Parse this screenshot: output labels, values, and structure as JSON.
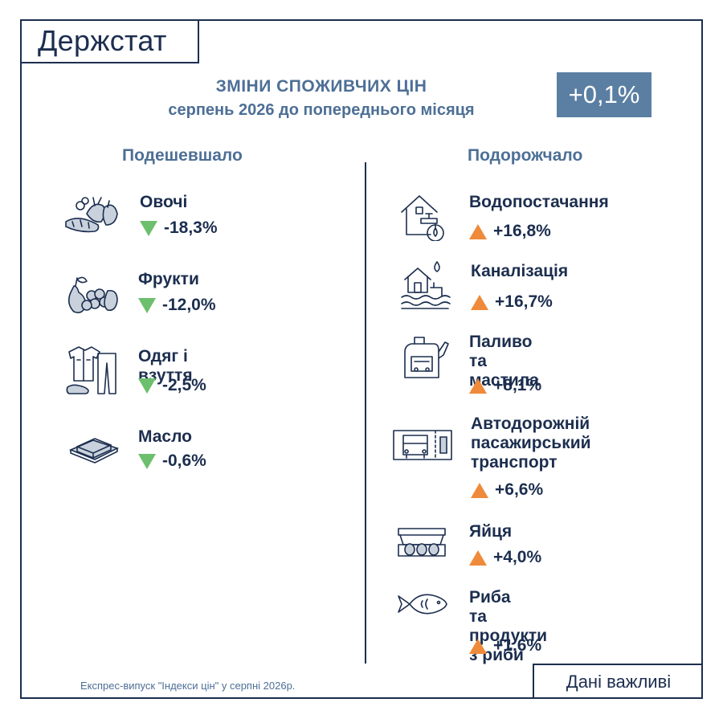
{
  "brand": {
    "logo": "Держстат"
  },
  "header": {
    "title": "ЗМІНИ СПОЖИВЧИХ ЦІН",
    "subtitle": "серпень 2026 до попереднього місяця",
    "total_change": "+0,1%"
  },
  "cheaper": {
    "heading": "Подешевшало",
    "color": "#6cbf6c",
    "items": [
      {
        "name": "Овочі",
        "change": "-18,3%",
        "icon": "vegetables-icon"
      },
      {
        "name": "Фрукти",
        "change": "-12,0%",
        "icon": "fruits-icon"
      },
      {
        "name": "Одяг і взуття",
        "change": "-2,5%",
        "icon": "clothes-icon"
      },
      {
        "name": "Масло",
        "change": "-0,6%",
        "icon": "butter-icon"
      }
    ]
  },
  "pricier": {
    "heading": "Подорожчало",
    "color": "#ef8a3a",
    "items": [
      {
        "name": "Водопостачання",
        "change": "+16,8%",
        "icon": "water-supply-icon"
      },
      {
        "name": "Каналізація",
        "change": "+16,7%",
        "icon": "sewerage-icon"
      },
      {
        "name": "Паливо та\nмастила",
        "change": "+8,1%",
        "icon": "fuel-icon"
      },
      {
        "name": "Автодорожній\nпасажирський\nтранспорт",
        "change": "+6,6%",
        "icon": "bus-ticket-icon"
      },
      {
        "name": "Яйця",
        "change": "+4,0%",
        "icon": "eggs-icon"
      },
      {
        "name": "Риба\nта продукти з риби",
        "change": "+1,6%",
        "icon": "fish-icon"
      }
    ]
  },
  "footer": {
    "note": "Експрес-випуск \"Індекси цін\" у серпні 2026р.",
    "tag": "Дані важливі"
  },
  "colors": {
    "primary": "#1c2e4f",
    "accent": "#5b7fa3",
    "muted": "#4d6f96"
  }
}
